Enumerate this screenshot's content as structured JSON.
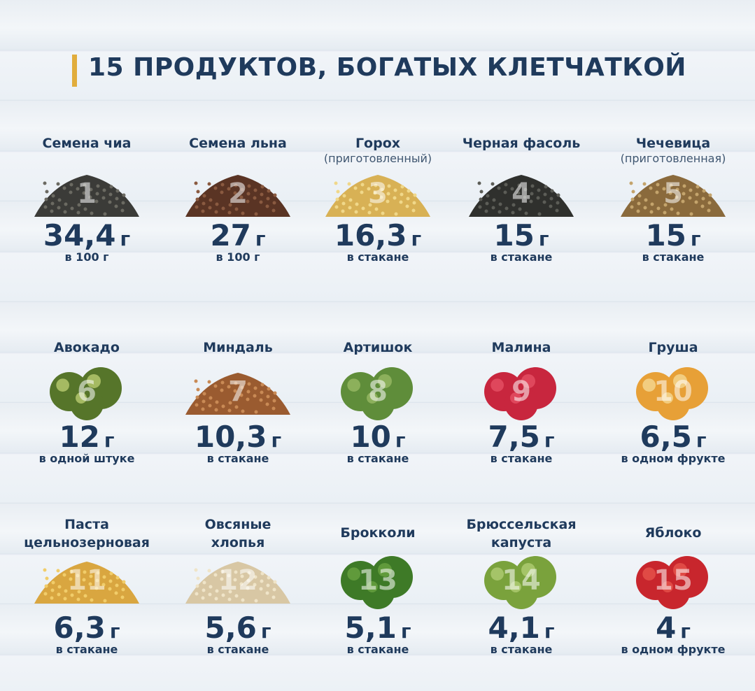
{
  "title": "15 ПРОДУКТОВ, БОГАТЫХ КЛЕТЧАТКОЙ",
  "items": [
    {
      "number": "1",
      "name": [
        "Семена чиа"
      ],
      "value": "34,4",
      "unit": "г",
      "per": "в 100 г"
    },
    {
      "number": "2",
      "name": [
        "Семена льна"
      ],
      "value": "27",
      "unit": "г",
      "per": "в 100 г"
    },
    {
      "number": "3",
      "name": [
        "Горох"
      ],
      "note": "(приготовленный)",
      "value": "16,3",
      "unit": "г",
      "per": "в стакане"
    },
    {
      "number": "4",
      "name": [
        "Черная фасоль"
      ],
      "value": "15",
      "unit": "г",
      "per": "в стакане"
    },
    {
      "number": "5",
      "name": [
        "Чечевица"
      ],
      "note": "(приготовленная)",
      "value": "15",
      "unit": "г",
      "per": "в стакане"
    },
    {
      "number": "6",
      "name": [
        "Авокадо"
      ],
      "value": "12",
      "unit": "г",
      "per": "в одной штуке"
    },
    {
      "number": "7",
      "name": [
        "Миндаль"
      ],
      "value": "10,3",
      "unit": "г",
      "per": "в стакане"
    },
    {
      "number": "8",
      "name": [
        "Артишок"
      ],
      "value": "10",
      "unit": "г",
      "per": "в стакане"
    },
    {
      "number": "9",
      "name": [
        "Малина"
      ],
      "value": "7,5",
      "unit": "г",
      "per": "в стакане"
    },
    {
      "number": "10",
      "name": [
        "Груша"
      ],
      "value": "6,5",
      "unit": "г",
      "per": "в одном фрукте"
    },
    {
      "number": "11",
      "name": [
        "Паста",
        "цельнозерновая"
      ],
      "value": "6,3",
      "unit": "г",
      "per": "в стакане"
    },
    {
      "number": "12",
      "name": [
        "Овсяные",
        "хлопья"
      ],
      "value": "5,6",
      "unit": "г",
      "per": "в стакане"
    },
    {
      "number": "13",
      "name": [
        "Брокколи"
      ],
      "value": "5,1",
      "unit": "г",
      "per": "в стакане"
    },
    {
      "number": "14",
      "name": [
        "Брюссельская",
        "капуста"
      ],
      "value": "4,1",
      "unit": "г",
      "per": "в стакане"
    },
    {
      "number": "15",
      "name": [
        "Яблоко"
      ],
      "value": "4",
      "unit": "г",
      "per": "в одном фрукте"
    }
  ]
}
